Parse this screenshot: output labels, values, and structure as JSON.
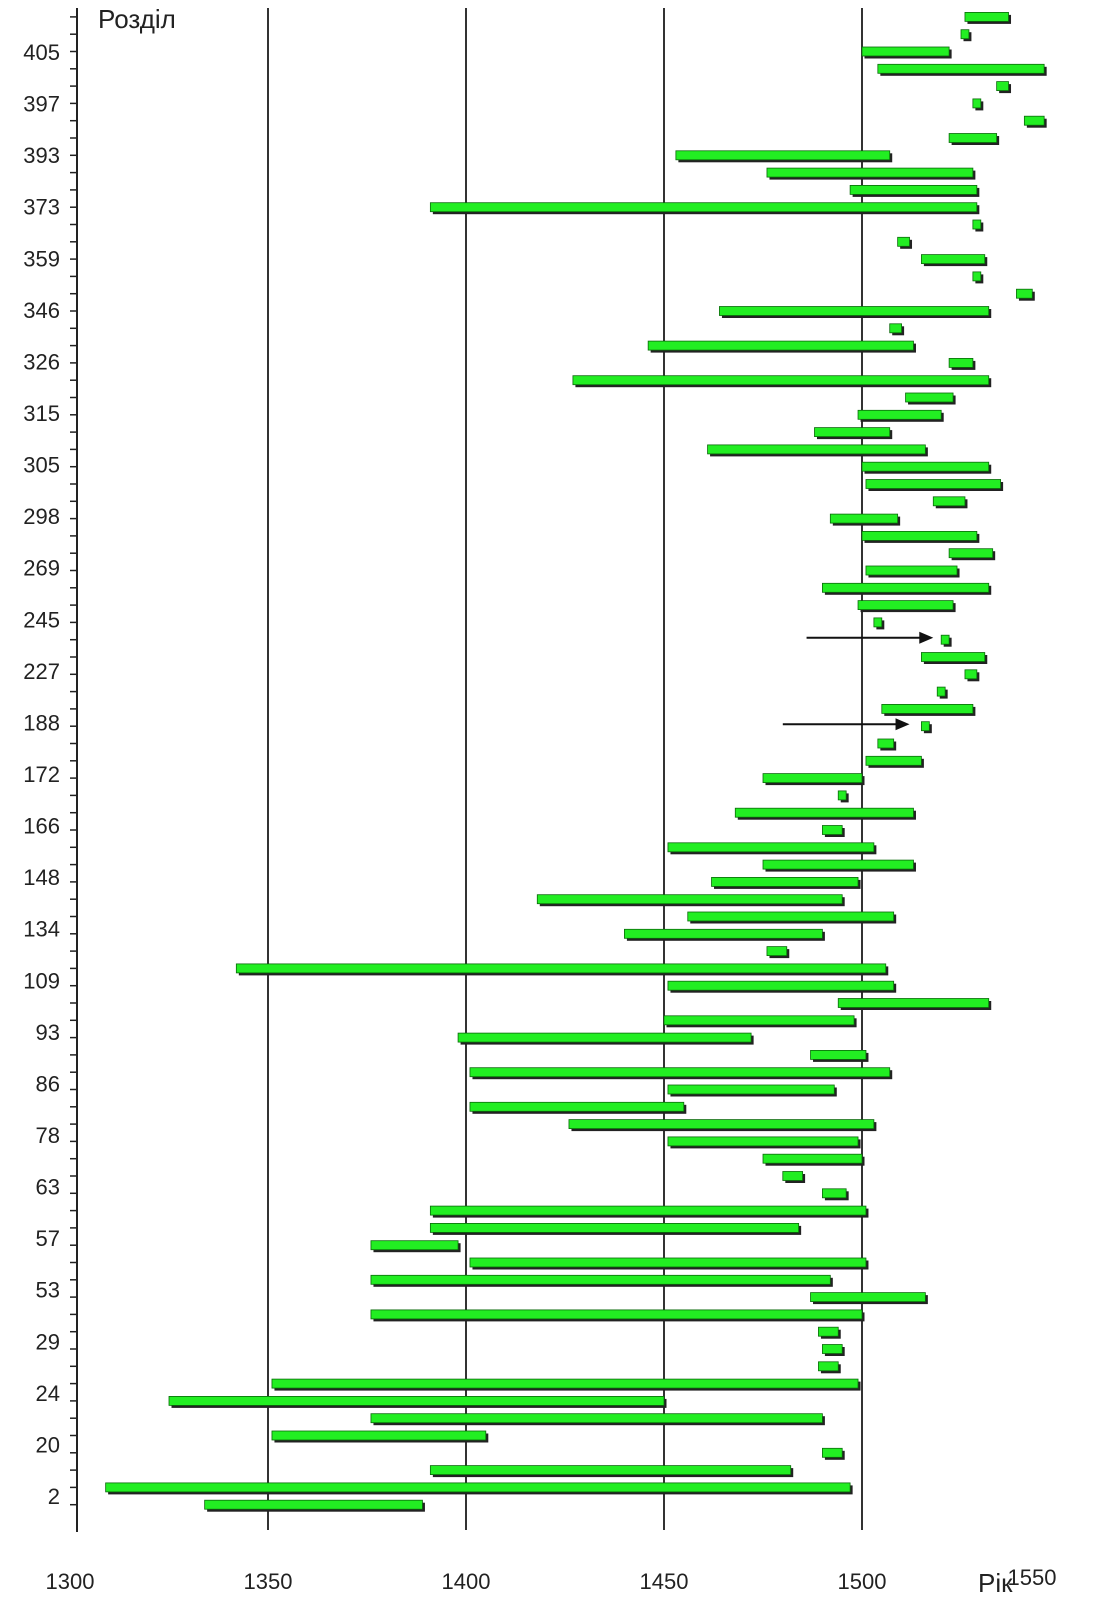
{
  "chart_data": {
    "type": "bar",
    "orientation": "horizontal-range",
    "ylabel": "Розділ",
    "xlabel": "Рік",
    "xlim": [
      1300,
      1550
    ],
    "x_ticks": [
      "1300",
      "1350",
      "1400",
      "1450",
      "1500",
      "1550"
    ],
    "y_tick_labels": [
      "405",
      "397",
      "393",
      "373",
      "359",
      "346",
      "326",
      "315",
      "305",
      "298",
      "269",
      "245",
      "227",
      "188",
      "172",
      "166",
      "148",
      "134",
      "109",
      "93",
      "86",
      "78",
      "63",
      "57",
      "53",
      "29",
      "24",
      "20",
      "2"
    ],
    "grid": "vertical lines at 1350, 1400, 1450, 1500",
    "bar_color": "#22ee22",
    "bar_shadow": "#222222",
    "bars": [
      [
        1526,
        1537
      ],
      [
        1525,
        1527
      ],
      [
        1500,
        1522
      ],
      [
        1504,
        1546
      ],
      [
        1534,
        1537
      ],
      [
        1528,
        1530
      ],
      [
        1541,
        1546
      ],
      [
        1522,
        1534
      ],
      [
        1453,
        1507
      ],
      [
        1476,
        1528
      ],
      [
        1497,
        1529
      ],
      [
        1391,
        1529
      ],
      [
        1528,
        1530
      ],
      [
        1509,
        1512
      ],
      [
        1515,
        1531
      ],
      [
        1528,
        1530
      ],
      [
        1539,
        1543
      ],
      [
        1464,
        1532
      ],
      [
        1507,
        1510
      ],
      [
        1446,
        1513
      ],
      [
        1522,
        1528
      ],
      [
        1427,
        1532
      ],
      [
        1511,
        1523
      ],
      [
        1499,
        1520
      ],
      [
        1488,
        1507
      ],
      [
        1461,
        1516
      ],
      [
        1500,
        1532
      ],
      [
        1501,
        1535
      ],
      [
        1518,
        1526
      ],
      [
        1492,
        1509
      ],
      [
        1500,
        1529
      ],
      [
        1522,
        1533
      ],
      [
        1501,
        1524
      ],
      [
        1490,
        1532
      ],
      [
        1499,
        1523
      ],
      [
        1503,
        1505
      ],
      [
        1520,
        1522
      ],
      [
        1515,
        1531
      ],
      [
        1526,
        1529
      ],
      [
        1519,
        1521
      ],
      [
        1505,
        1528
      ],
      [
        1515,
        1517
      ],
      [
        1504,
        1508
      ],
      [
        1501,
        1515
      ],
      [
        1475,
        1500
      ],
      [
        1494,
        1496
      ],
      [
        1468,
        1513
      ],
      [
        1490,
        1495
      ],
      [
        1451,
        1503
      ],
      [
        1475,
        1513
      ],
      [
        1462,
        1499
      ],
      [
        1418,
        1495
      ],
      [
        1456,
        1508
      ],
      [
        1440,
        1490
      ],
      [
        1476,
        1481
      ],
      [
        1342,
        1506
      ],
      [
        1451,
        1508
      ],
      [
        1494,
        1532
      ],
      [
        1450,
        1498
      ],
      [
        1398,
        1472
      ],
      [
        1487,
        1501
      ],
      [
        1401,
        1507
      ],
      [
        1451,
        1493
      ],
      [
        1401,
        1455
      ],
      [
        1426,
        1503
      ],
      [
        1451,
        1499
      ],
      [
        1475,
        1500
      ],
      [
        1480,
        1485
      ],
      [
        1490,
        1496
      ],
      [
        1391,
        1501
      ],
      [
        1391,
        1484
      ],
      [
        1376,
        1398
      ],
      [
        1401,
        1501
      ],
      [
        1376,
        1492
      ],
      [
        1487,
        1516
      ],
      [
        1376,
        1500
      ],
      [
        1489,
        1494
      ],
      [
        1490,
        1495
      ],
      [
        1489,
        1494
      ],
      [
        1351,
        1499
      ],
      [
        1325,
        1450
      ],
      [
        1376,
        1490
      ],
      [
        1351,
        1405
      ],
      [
        1490,
        1495
      ],
      [
        1391,
        1482
      ],
      [
        1309,
        1497
      ],
      [
        1334,
        1389
      ]
    ],
    "annotations": [
      {
        "type": "arrow",
        "from_x": 1486,
        "to_x": 1518,
        "bar_index": 36
      },
      {
        "type": "arrow",
        "from_x": 1480,
        "to_x": 1512,
        "bar_index": 41
      }
    ]
  }
}
